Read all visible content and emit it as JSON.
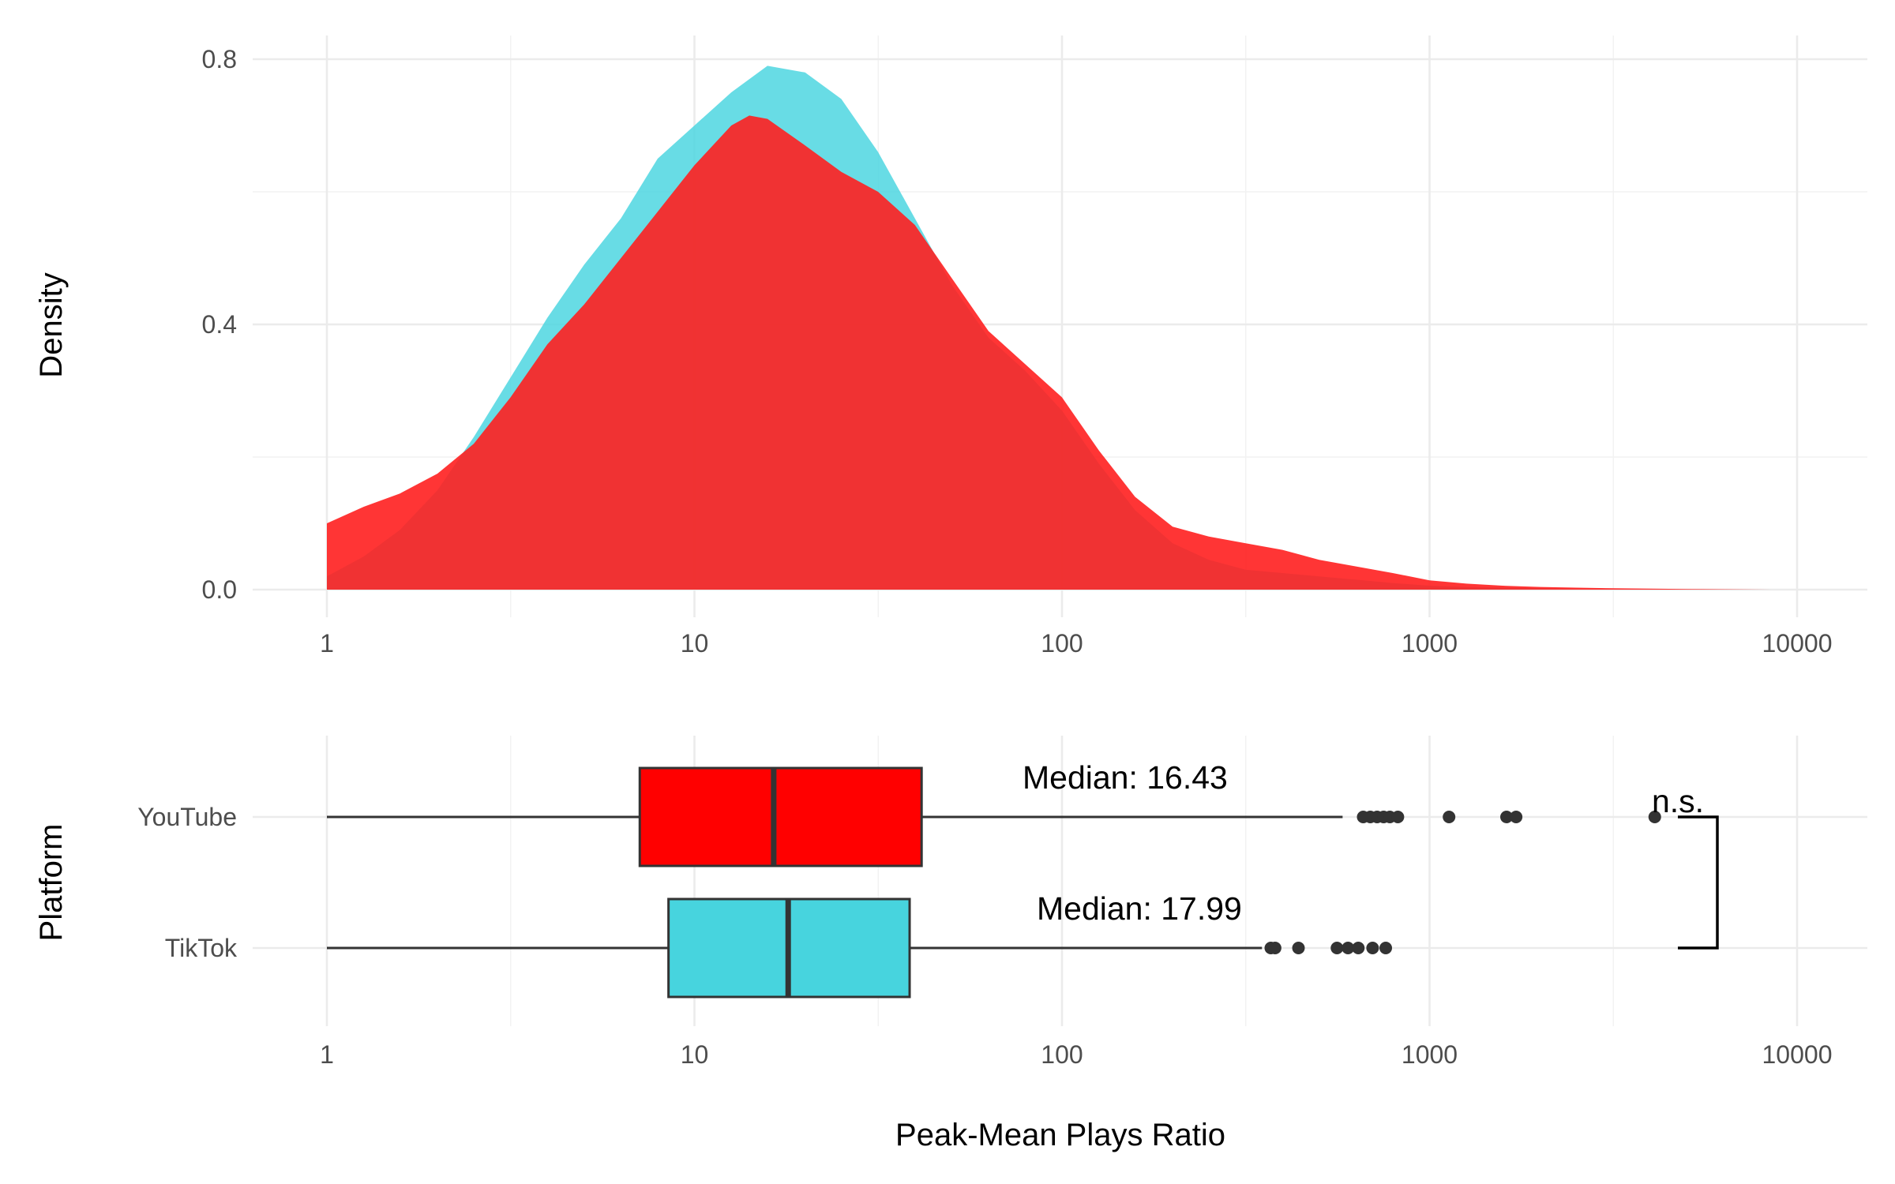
{
  "chart_data": [
    {
      "type": "area",
      "panel": "density",
      "ylabel": "Density",
      "xscale": "log10",
      "xlim": [
        1,
        10000
      ],
      "ylim": [
        0,
        0.8
      ],
      "x_ticks": [
        "1",
        "10",
        "100",
        "1000",
        "10000"
      ],
      "y_ticks": [
        "0.0",
        "0.4",
        "0.8"
      ],
      "grid": true,
      "colors": {
        "TikTok": "#4dd6e0",
        "YouTube": "#ff1f1f"
      },
      "series": [
        {
          "key": "TikTok",
          "points": [
            [
              1,
              0.02
            ],
            [
              1.26,
              0.05
            ],
            [
              1.58,
              0.09
            ],
            [
              2,
              0.15
            ],
            [
              2.51,
              0.23
            ],
            [
              3.16,
              0.32
            ],
            [
              3.98,
              0.41
            ],
            [
              5.01,
              0.49
            ],
            [
              6.31,
              0.56
            ],
            [
              7.94,
              0.65
            ],
            [
              10,
              0.7
            ],
            [
              12.6,
              0.75
            ],
            [
              15.8,
              0.79
            ],
            [
              20,
              0.78
            ],
            [
              25.1,
              0.74
            ],
            [
              31.6,
              0.66
            ],
            [
              39.8,
              0.56
            ],
            [
              50.1,
              0.46
            ],
            [
              63.1,
              0.38
            ],
            [
              79.4,
              0.33
            ],
            [
              100,
              0.27
            ],
            [
              126,
              0.19
            ],
            [
              158,
              0.12
            ],
            [
              200,
              0.07
            ],
            [
              251,
              0.045
            ],
            [
              316,
              0.03
            ],
            [
              398,
              0.025
            ],
            [
              501,
              0.02
            ],
            [
              631,
              0.015
            ],
            [
              794,
              0.01
            ],
            [
              1000,
              0.006
            ],
            [
              1260,
              0.004
            ],
            [
              1580,
              0.003
            ],
            [
              2000,
              0.002
            ],
            [
              2510,
              0.001
            ],
            [
              3160,
              0.0005
            ],
            [
              5000,
              0.0
            ]
          ]
        },
        {
          "key": "YouTube",
          "points": [
            [
              1,
              0.1
            ],
            [
              1.26,
              0.125
            ],
            [
              1.58,
              0.145
            ],
            [
              2,
              0.175
            ],
            [
              2.51,
              0.22
            ],
            [
              3.16,
              0.29
            ],
            [
              3.98,
              0.37
            ],
            [
              5.01,
              0.43
            ],
            [
              6.31,
              0.5
            ],
            [
              7.94,
              0.57
            ],
            [
              10,
              0.64
            ],
            [
              12.6,
              0.7
            ],
            [
              14.1,
              0.715
            ],
            [
              15.8,
              0.71
            ],
            [
              20,
              0.67
            ],
            [
              25.1,
              0.63
            ],
            [
              31.6,
              0.6
            ],
            [
              39.8,
              0.55
            ],
            [
              50.1,
              0.47
            ],
            [
              63.1,
              0.39
            ],
            [
              79.4,
              0.34
            ],
            [
              100,
              0.29
            ],
            [
              126,
              0.21
            ],
            [
              158,
              0.14
            ],
            [
              200,
              0.095
            ],
            [
              251,
              0.08
            ],
            [
              316,
              0.07
            ],
            [
              398,
              0.06
            ],
            [
              501,
              0.045
            ],
            [
              631,
              0.035
            ],
            [
              794,
              0.025
            ],
            [
              1000,
              0.014
            ],
            [
              1260,
              0.009
            ],
            [
              1580,
              0.006
            ],
            [
              2000,
              0.004
            ],
            [
              2510,
              0.003
            ],
            [
              3160,
              0.002
            ],
            [
              5010,
              0.001
            ],
            [
              8500,
              0.0
            ]
          ]
        }
      ]
    },
    {
      "type": "box",
      "panel": "boxplot",
      "xlabel": "Peak-Mean Plays Ratio",
      "ylabel": "Platform",
      "xscale": "log10",
      "xlim": [
        1,
        10000
      ],
      "x_ticks": [
        "1",
        "10",
        "100",
        "1000",
        "10000"
      ],
      "categories": [
        "YouTube",
        "TikTok"
      ],
      "colors": {
        "YouTube": "#ff0000",
        "TikTok": "#47d4de"
      },
      "boxes": [
        {
          "category": "YouTube",
          "whisker_low": 1,
          "q1": 7.1,
          "median": 16.43,
          "q3": 41.5,
          "whisker_high": 580,
          "outliers": [
            660,
            690,
            720,
            750,
            780,
            820,
            1130,
            1620,
            1720,
            4100
          ],
          "median_label": "Median: 16.43"
        },
        {
          "category": "TikTok",
          "whisker_low": 1,
          "q1": 8.5,
          "median": 17.99,
          "q3": 38.5,
          "whisker_high": 350,
          "outliers": [
            370,
            380,
            440,
            560,
            600,
            640,
            700,
            760
          ],
          "median_label": "Median: 17.99"
        }
      ],
      "significance": {
        "label": "n.s.",
        "between": [
          "YouTube",
          "TikTok"
        ]
      }
    }
  ]
}
